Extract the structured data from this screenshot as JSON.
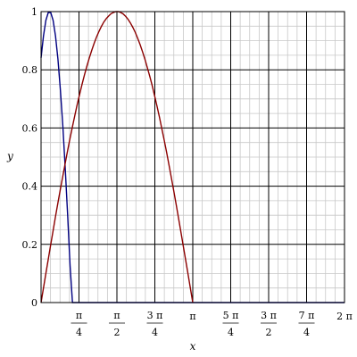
{
  "chart_data": {
    "type": "line",
    "title": "",
    "xlabel": "x",
    "ylabel": "y",
    "xlim": [
      0,
      6.283185307
    ],
    "ylim": [
      0,
      1
    ],
    "grid": true,
    "y_ticks": [
      {
        "value": 0,
        "label": "0"
      },
      {
        "value": 0.2,
        "label": "0.2"
      },
      {
        "value": 0.4,
        "label": "0.4"
      },
      {
        "value": 0.6,
        "label": "0.6"
      },
      {
        "value": 0.8,
        "label": "0.8"
      },
      {
        "value": 1,
        "label": "1"
      }
    ],
    "x_ticks": [
      {
        "value": 0.785398,
        "num": "π",
        "den": "4"
      },
      {
        "value": 1.570796,
        "num": "π",
        "den": "2"
      },
      {
        "value": 2.356194,
        "num": "3 π",
        "den": "4"
      },
      {
        "value": 3.141593,
        "label": "π"
      },
      {
        "value": 3.926991,
        "num": "5 π",
        "den": "4"
      },
      {
        "value": 4.712389,
        "num": "3 π",
        "den": "2"
      },
      {
        "value": 5.497787,
        "num": "7 π",
        "den": "4"
      },
      {
        "value": 6.283185,
        "label": "2 π"
      }
    ],
    "series": [
      {
        "color": "#000080",
        "x": [
          0.0,
          0.05,
          0.1,
          0.15,
          0.2,
          0.25,
          0.3,
          0.35,
          0.4,
          0.45,
          0.5,
          0.55,
          0.6,
          0.65,
          0.7,
          0.75,
          0.8,
          0.85,
          0.9,
          0.95,
          1.0,
          1.05,
          1.1,
          1.15,
          1.2,
          1.25,
          1.3,
          1.35,
          1.4,
          1.45,
          1.5,
          1.55,
          1.6,
          1.65,
          1.7,
          1.75,
          1.8,
          1.85,
          1.9,
          1.95,
          2.0,
          2.05,
          2.1,
          2.15,
          2.2,
          2.25,
          2.3,
          2.35,
          2.4,
          2.45,
          2.5,
          2.55,
          2.6,
          2.65,
          2.7,
          2.75,
          2.8,
          2.85,
          2.9,
          2.95,
          3.0,
          3.05,
          3.1,
          3.15,
          3.2,
          3.25,
          3.3,
          3.35,
          3.4,
          3.45,
          3.5,
          3.55,
          3.6,
          3.65,
          3.7,
          3.75,
          3.8,
          3.85,
          3.9,
          3.95,
          4.0,
          4.05,
          4.1,
          4.15,
          4.2,
          4.25,
          4.3,
          4.35,
          4.4,
          4.45,
          4.5,
          4.55,
          4.6,
          4.65,
          4.7,
          4.75,
          4.8,
          4.85,
          4.9,
          4.95,
          5.0,
          5.05,
          5.1,
          5.15,
          5.2,
          5.25,
          5.3,
          5.35,
          5.4,
          5.45,
          5.5,
          5.55,
          5.6,
          5.65,
          5.7,
          5.75,
          5.8,
          5.85,
          5.9,
          5.95,
          6.0,
          6.05,
          6.1,
          6.15,
          6.2,
          6.25,
          6.283
        ],
        "y": [
          0.841,
          0.916,
          0.97,
          0.997,
          0.997,
          0.97,
          0.916,
          0.837,
          0.733,
          0.607,
          0.461,
          0.3,
          0.128,
          0.0,
          0.0,
          0.0,
          0.0,
          0.0,
          0.0,
          0.0,
          0.0,
          0.0,
          0.0,
          0.0,
          0.0,
          0.0,
          0.0,
          0.0,
          0.0,
          0.0,
          0.0,
          0.0,
          0.0,
          0.0,
          0.0,
          0.0,
          0.0,
          0.0,
          0.0,
          0.0,
          0.0,
          0.0,
          0.0,
          0.0,
          0.0,
          0.0,
          0.0,
          0.0,
          0.0,
          0.0,
          0.0,
          0.0,
          0.0,
          0.0,
          0.0,
          0.0,
          0.0,
          0.0,
          0.0,
          0.0,
          0.0,
          0.0,
          0.0,
          0.0,
          0.0,
          0.0,
          0.0,
          0.0,
          0.0,
          0.0,
          0.0,
          0.0,
          0.0,
          0.0,
          0.0,
          0.0,
          0.0,
          0.0,
          0.0,
          0.0,
          0.0,
          0.0,
          0.0,
          0.0,
          0.0,
          0.0,
          0.0,
          0.0,
          0.0,
          0.0,
          0.0,
          0.0,
          0.0,
          0.0,
          0.0,
          0.0,
          0.0,
          0.0,
          0.0,
          0.0,
          0.0,
          0.0,
          0.0,
          0.0,
          0.0,
          0.0,
          0.0,
          0.0,
          0.0,
          0.0,
          0.0,
          0.0,
          0.0,
          0.0,
          0.0,
          0.0,
          0.0,
          0.0,
          0.0,
          0.0,
          0.0,
          0.0,
          0.0,
          0.0,
          0.0,
          0.0,
          0.0
        ]
      },
      {
        "color": "#8b0000",
        "x": [
          0.0,
          0.05,
          0.1,
          0.15,
          0.2,
          0.25,
          0.3,
          0.35,
          0.4,
          0.45,
          0.5,
          0.55,
          0.6,
          0.65,
          0.7,
          0.75,
          0.8,
          0.85,
          0.9,
          0.95,
          1.0,
          1.05,
          1.1,
          1.15,
          1.2,
          1.25,
          1.3,
          1.35,
          1.4,
          1.45,
          1.5,
          1.55,
          1.6,
          1.65,
          1.7,
          1.75,
          1.8,
          1.85,
          1.9,
          1.95,
          2.0,
          2.05,
          2.1,
          2.15,
          2.2,
          2.25,
          2.3,
          2.35,
          2.4,
          2.45,
          2.5,
          2.55,
          2.6,
          2.65,
          2.7,
          2.75,
          2.8,
          2.85,
          2.9,
          2.95,
          3.0,
          3.05,
          3.1,
          3.1416
        ],
        "y": [
          0.0,
          0.05,
          0.1,
          0.149,
          0.199,
          0.247,
          0.296,
          0.343,
          0.389,
          0.435,
          0.479,
          0.523,
          0.565,
          0.605,
          0.644,
          0.682,
          0.717,
          0.751,
          0.783,
          0.813,
          0.841,
          0.867,
          0.891,
          0.913,
          0.932,
          0.949,
          0.964,
          0.976,
          0.985,
          0.993,
          0.997,
          1.0,
          1.0,
          0.997,
          0.992,
          0.984,
          0.974,
          0.961,
          0.946,
          0.929,
          0.909,
          0.887,
          0.863,
          0.837,
          0.808,
          0.778,
          0.746,
          0.711,
          0.675,
          0.638,
          0.598,
          0.558,
          0.516,
          0.472,
          0.427,
          0.382,
          0.335,
          0.287,
          0.239,
          0.19,
          0.141,
          0.092,
          0.042,
          0.0
        ]
      }
    ]
  }
}
